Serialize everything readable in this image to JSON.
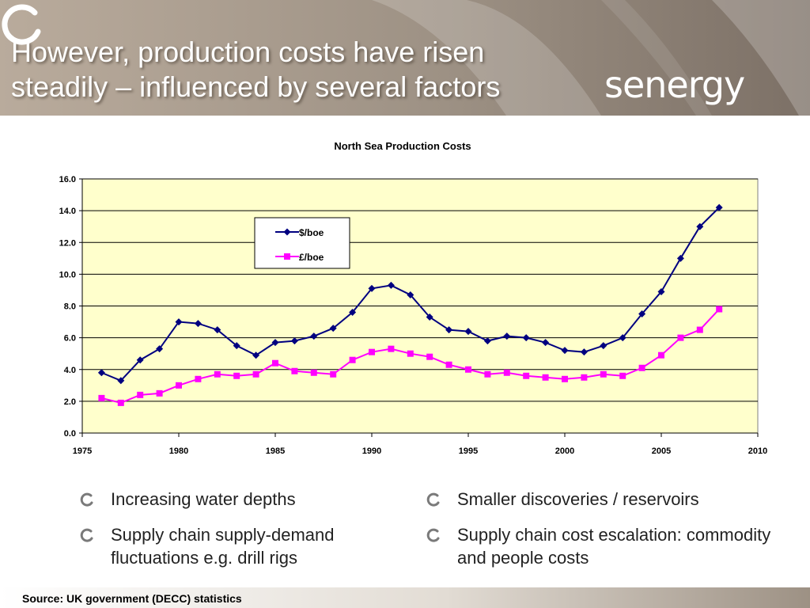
{
  "slide": {
    "title_line1": "However, production costs have risen",
    "title_line2": "steadily – influenced by several factors",
    "logo_text": "senergy",
    "source": "Source: UK government (DECC) statistics"
  },
  "bullets_left": [
    {
      "text": "Increasing water depths"
    },
    {
      "text": "Supply chain supply-demand fluctuations e.g. drill rigs"
    }
  ],
  "bullets_right": [
    {
      "text": "Smaller discoveries / reservoirs"
    },
    {
      "text": "Supply chain cost escalation: commodity and people costs"
    }
  ],
  "colors": {
    "header_bg": "#8a7e72",
    "plot_bg": "#ffffcc",
    "series_usd": "#000080",
    "series_gbp": "#ff00ff"
  },
  "chart_data": {
    "type": "line",
    "title": "North Sea Production Costs",
    "xlabel": "",
    "ylabel": "",
    "xlim": [
      1975,
      2010
    ],
    "ylim": [
      0,
      16
    ],
    "x_ticks": [
      "1975",
      "1980",
      "1985",
      "1990",
      "1995",
      "2000",
      "2005",
      "2010"
    ],
    "y_ticks": [
      "0.0",
      "2.0",
      "4.0",
      "6.0",
      "8.0",
      "10.0",
      "12.0",
      "14.0",
      "16.0"
    ],
    "grid": "horizontal",
    "legend_position": "top-center",
    "x": [
      1976,
      1977,
      1978,
      1979,
      1980,
      1981,
      1982,
      1983,
      1984,
      1985,
      1986,
      1987,
      1988,
      1989,
      1990,
      1991,
      1992,
      1993,
      1994,
      1995,
      1996,
      1997,
      1998,
      1999,
      2000,
      2001,
      2002,
      2003,
      2004,
      2005,
      2006,
      2007,
      2008
    ],
    "series": [
      {
        "name": "$/boe",
        "marker": "diamond",
        "values": [
          3.8,
          3.3,
          4.6,
          5.3,
          7.0,
          6.9,
          6.5,
          5.5,
          4.9,
          5.7,
          5.8,
          6.1,
          6.6,
          7.6,
          9.1,
          9.3,
          8.7,
          7.3,
          6.5,
          6.4,
          5.8,
          6.1,
          6.0,
          5.7,
          5.2,
          5.1,
          5.5,
          6.0,
          7.5,
          8.9,
          11.0,
          13.0,
          14.2
        ]
      },
      {
        "name": "£/boe",
        "marker": "square",
        "values": [
          2.2,
          1.9,
          2.4,
          2.5,
          3.0,
          3.4,
          3.7,
          3.6,
          3.7,
          4.4,
          3.9,
          3.8,
          3.7,
          4.6,
          5.1,
          5.3,
          5.0,
          4.8,
          4.3,
          4.0,
          3.7,
          3.8,
          3.6,
          3.5,
          3.4,
          3.5,
          3.7,
          3.6,
          4.1,
          4.9,
          6.0,
          6.5,
          7.8
        ]
      }
    ]
  }
}
